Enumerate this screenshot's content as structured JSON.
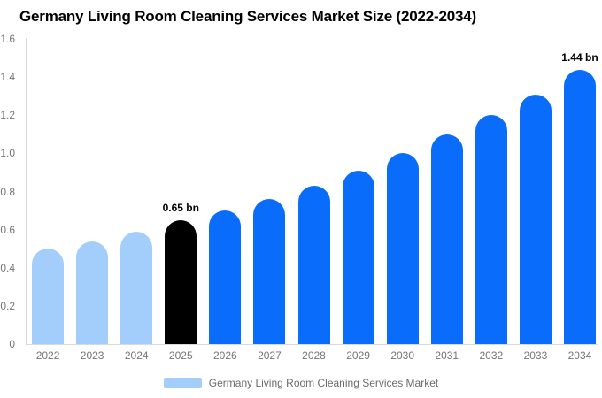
{
  "title": "Germany Living Room Cleaning Services Market Size (2022-2034)",
  "chart_data": {
    "type": "bar",
    "title": "Germany Living Room Cleaning Services Market Size (2022-2034)",
    "unit": "bn",
    "categories": [
      "2022",
      "2023",
      "2024",
      "2025",
      "2026",
      "2027",
      "2028",
      "2029",
      "2030",
      "2031",
      "2032",
      "2033",
      "2034"
    ],
    "values": [
      0.5,
      0.54,
      0.59,
      0.65,
      0.7,
      0.76,
      0.83,
      0.91,
      1.0,
      1.1,
      1.2,
      1.31,
      1.44
    ],
    "bar_styles": [
      "historical",
      "historical",
      "historical",
      "current",
      "forecast",
      "forecast",
      "forecast",
      "forecast",
      "forecast",
      "forecast",
      "forecast",
      "forecast",
      "forecast"
    ],
    "point_labels": {
      "2025": "0.65 bn",
      "2034": "1.44 bn"
    },
    "colors": {
      "historical": "#a3cdfb",
      "current": "#000000",
      "forecast": "#0a6cfa"
    },
    "xlabel": "",
    "ylabel": "",
    "ylim": [
      0,
      1.6
    ],
    "ytick_labels": [
      "1.6",
      "1.4",
      "1.2",
      "1.0",
      "0.8",
      "0.6",
      "0.4",
      "0.2",
      "0"
    ],
    "grid": false,
    "legend": {
      "position": "bottom",
      "entries": [
        {
          "label": "Germany Living Room Cleaning Services Market",
          "swatch_color": "#a3cdfb"
        }
      ]
    }
  }
}
